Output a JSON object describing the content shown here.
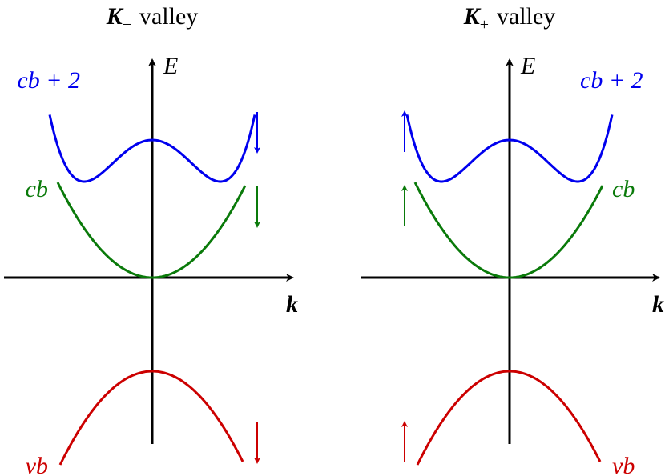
{
  "panels": [
    {
      "title": {
        "symbol": "K",
        "subscript": "−",
        "text": "valley"
      },
      "y_axis_label": "E",
      "x_axis_label": "k",
      "bands": [
        {
          "label": "cb + 2"
        },
        {
          "label": "cb"
        },
        {
          "label": "vb"
        }
      ]
    },
    {
      "title": {
        "symbol": "K",
        "subscript": "+",
        "text": "valley"
      },
      "y_axis_label": "E",
      "x_axis_label": "k",
      "bands": [
        {
          "label": "cb + 2"
        },
        {
          "label": "cb"
        },
        {
          "label": "vb"
        }
      ]
    }
  ]
}
